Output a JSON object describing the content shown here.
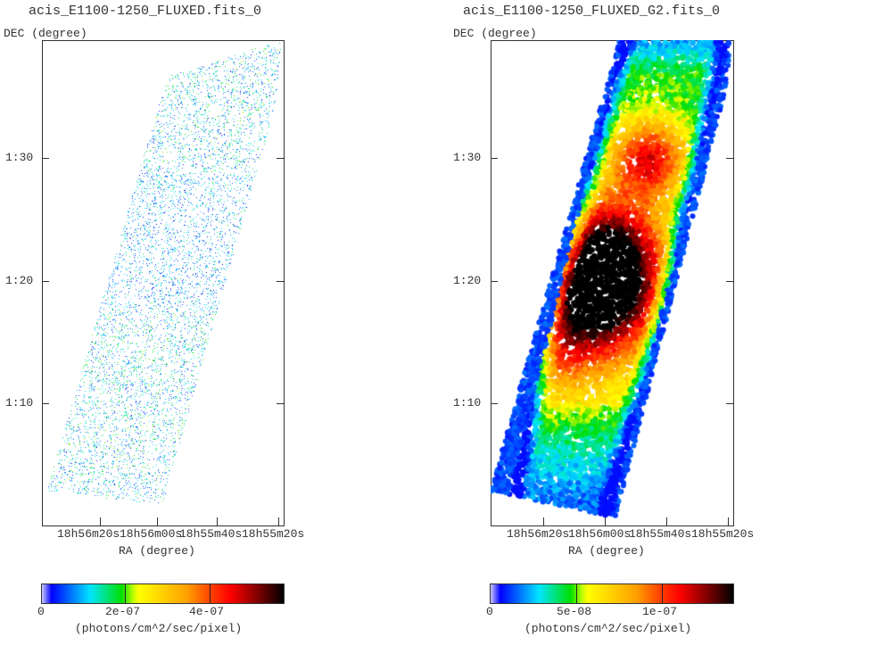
{
  "chart_data": [
    {
      "type": "heatmap",
      "title": "acis_E1100-1250_FLUXED.fits_0",
      "xlabel": "RA (degree)",
      "ylabel": "DEC (degree)",
      "x_ticks": [
        "18h56m20s",
        "18h56m00s",
        "18h55m40s",
        "18h55m20s"
      ],
      "y_ticks": [
        "1:30",
        "1:20",
        "1:10"
      ],
      "colorbar": {
        "label": "(photons/cm^2/sec/pixel)",
        "ticks": [
          "0",
          "2e-07",
          "4e-07"
        ],
        "range": [
          0,
          5.8e-07
        ],
        "colormap": "rainbow"
      },
      "style": "sparse-counts"
    },
    {
      "type": "heatmap",
      "title": "acis_E1100-1250_FLUXED_G2.fits_0",
      "xlabel": "RA (degree)",
      "ylabel": "DEC (degree)",
      "x_ticks": [
        "18h56m20s",
        "18h56m00s",
        "18h55m40s",
        "18h55m20s"
      ],
      "y_ticks": [
        "1:30",
        "1:20",
        "1:10"
      ],
      "colorbar": {
        "label": "(photons/cm^2/sec/pixel)",
        "ticks": [
          "0",
          "5e-08",
          "1e-07"
        ],
        "range": [
          0,
          1.4e-07
        ],
        "colormap": "rainbow"
      },
      "style": "smoothed"
    }
  ]
}
